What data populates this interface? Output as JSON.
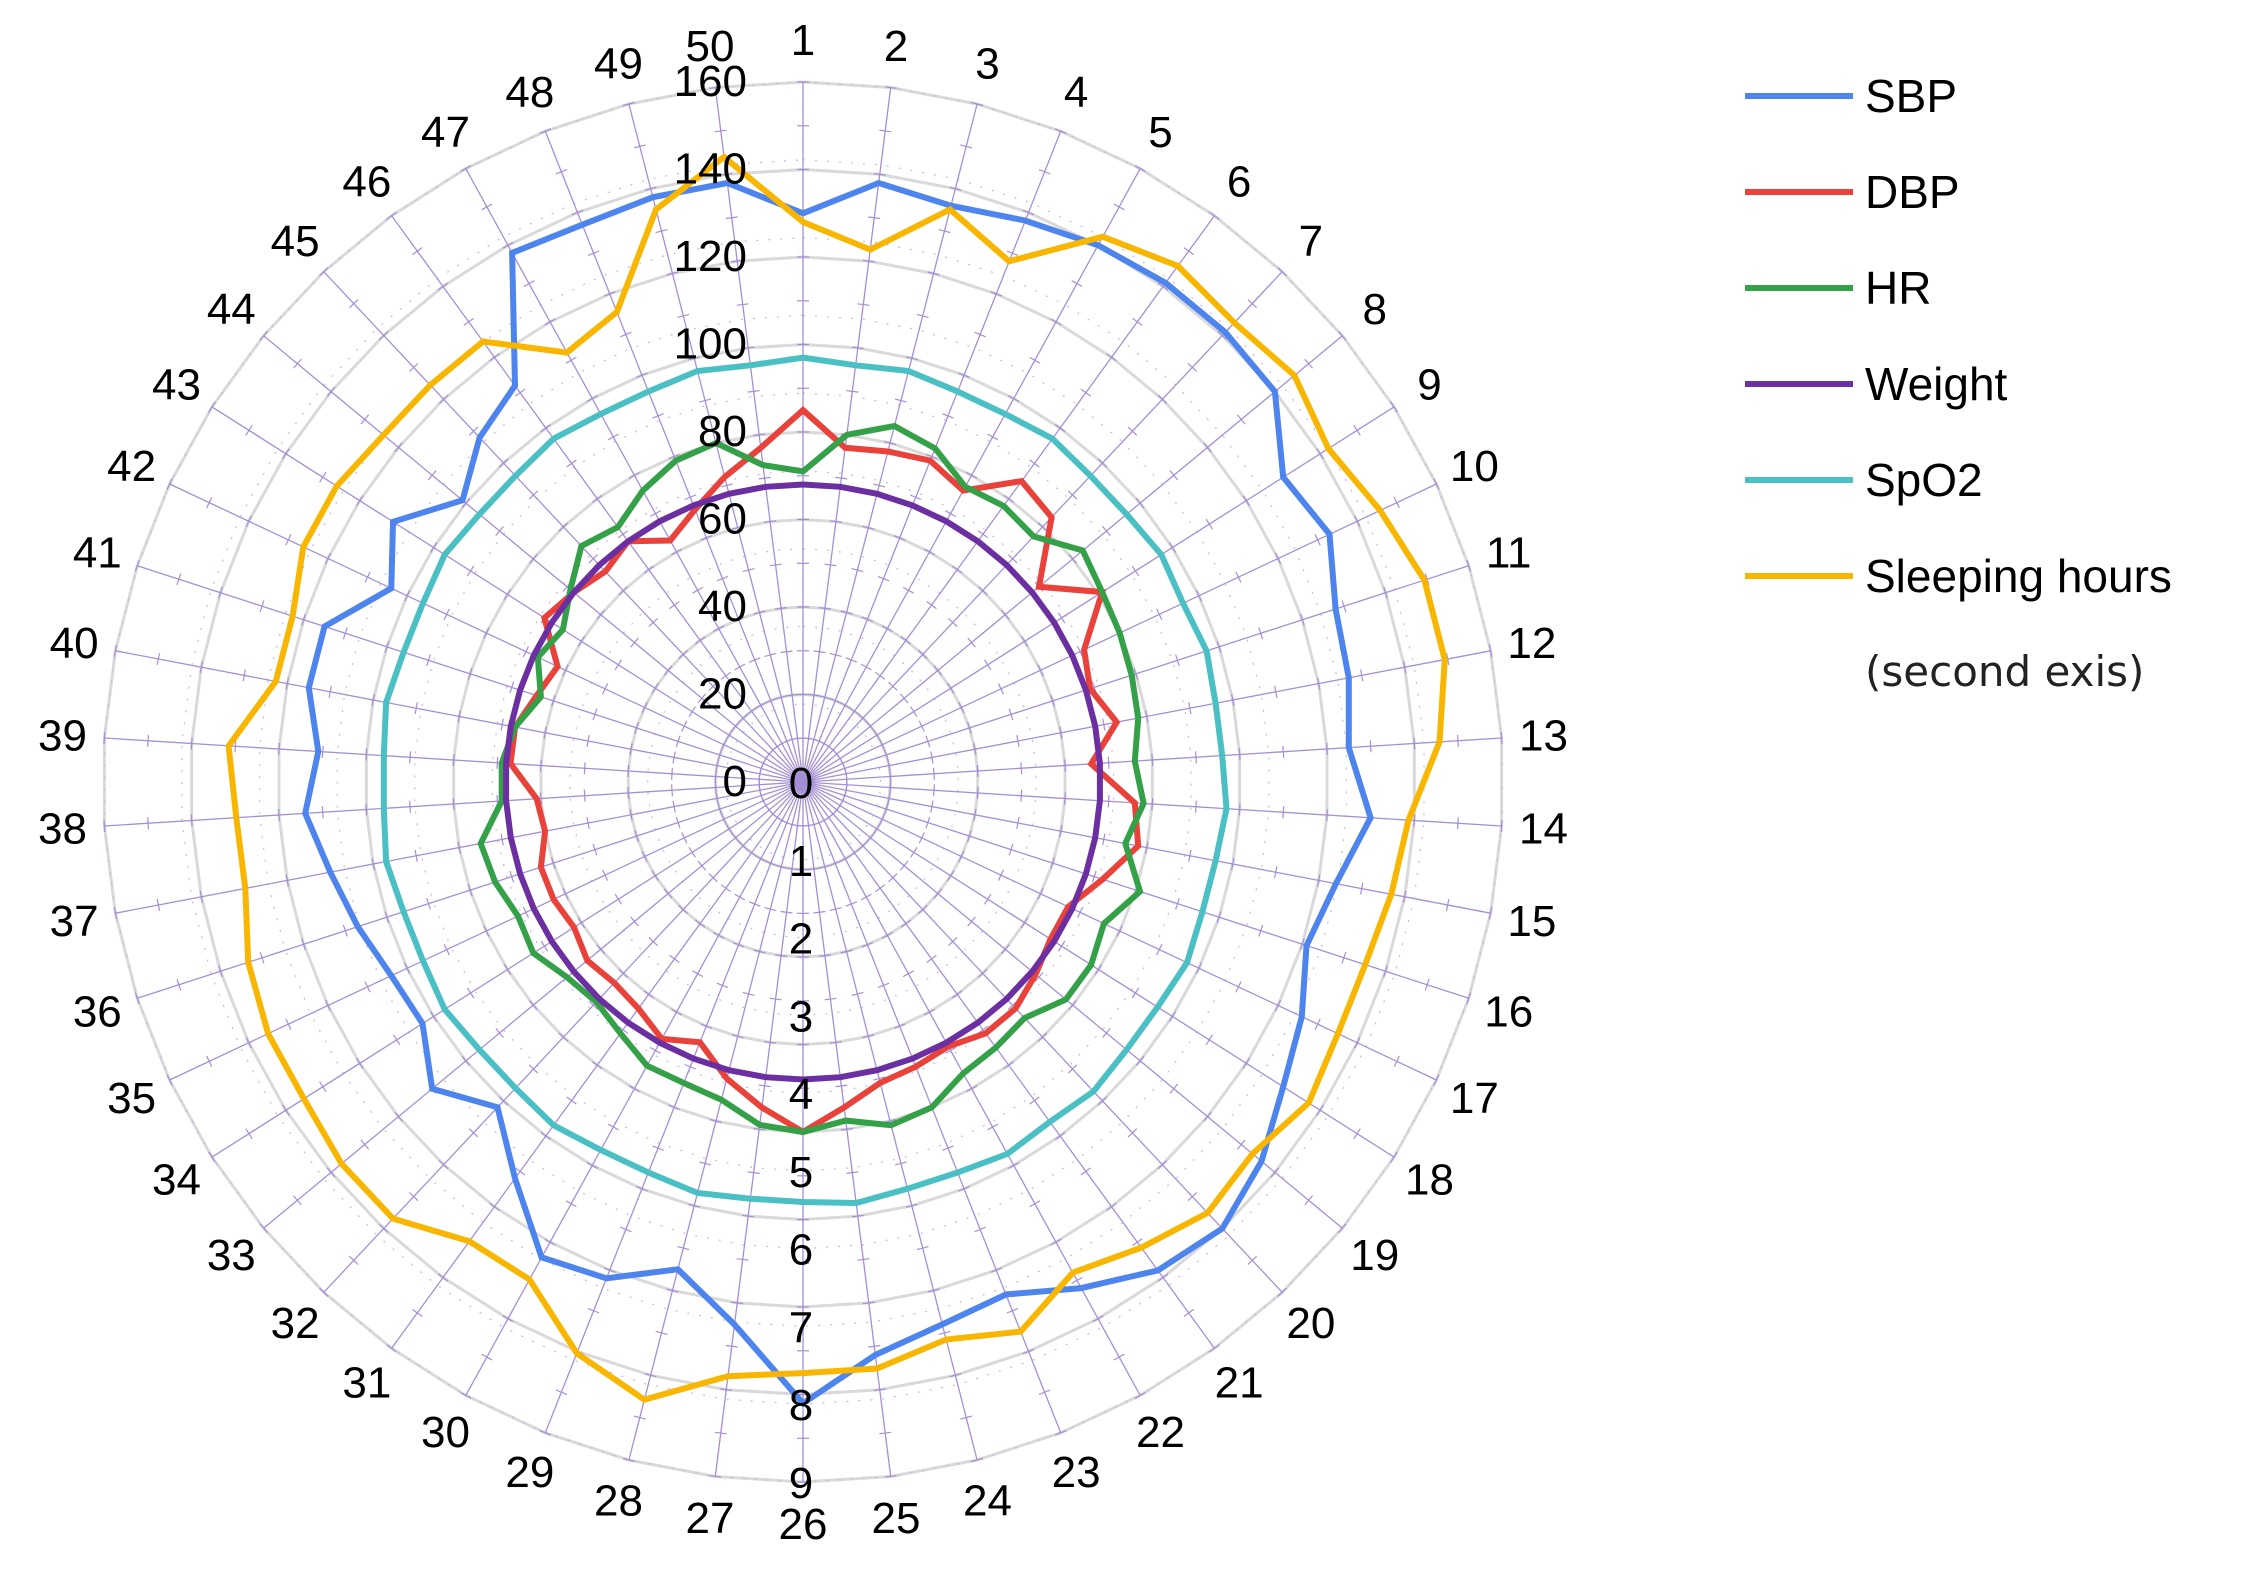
{
  "chart_data": {
    "type": "radar",
    "categories": [
      "1",
      "2",
      "3",
      "4",
      "5",
      "6",
      "7",
      "8",
      "9",
      "10",
      "11",
      "12",
      "13",
      "14",
      "15",
      "16",
      "17",
      "18",
      "19",
      "20",
      "21",
      "22",
      "23",
      "24",
      "25",
      "26",
      "27",
      "28",
      "29",
      "30",
      "31",
      "32",
      "33",
      "34",
      "35",
      "36",
      "37",
      "38",
      "39",
      "40",
      "41",
      "42",
      "43",
      "44",
      "45",
      "46",
      "47",
      "48",
      "49",
      "50"
    ],
    "primary_axis": {
      "range": [
        0,
        160
      ],
      "ticks": [
        0,
        20,
        40,
        60,
        80,
        100,
        120,
        140,
        160
      ]
    },
    "secondary_axis": {
      "range": [
        0,
        9
      ],
      "ticks": [
        0,
        1,
        2,
        3,
        4,
        5,
        6,
        7,
        8,
        9
      ]
    },
    "series": [
      {
        "name": "SBP",
        "color": "#4e84ee",
        "axis": "primary",
        "values": [
          130,
          138,
          136,
          138,
          140,
          141,
          141,
          140,
          130,
          133,
          128,
          127,
          125,
          130,
          124,
          121,
          126,
          130,
          136,
          140,
          138,
          132,
          126,
          128,
          132,
          142,
          125,
          115,
          122,
          124,
          112,
          102,
          110,
          103,
          104,
          107,
          110,
          114,
          111,
          115,
          115,
          104,
          111,
          101,
          108,
          112,
          138,
          137,
          138,
          138
        ]
      },
      {
        "name": "DBP",
        "color": "#e8423a",
        "axis": "primary",
        "values": [
          85,
          77,
          78,
          79,
          76,
          85,
          83,
          70,
          81,
          71,
          69,
          73,
          66,
          76,
          78,
          72,
          67,
          67,
          69,
          71,
          71,
          69,
          70,
          71,
          75,
          80,
          75,
          70,
          64,
          67,
          64,
          63,
          64,
          62,
          63,
          63,
          60,
          61,
          67,
          67,
          64,
          62,
          70,
          68,
          66,
          68,
          63,
          67,
          72,
          77
        ]
      },
      {
        "name": "HR",
        "color": "#34a048",
        "axis": "primary",
        "values": [
          71,
          80,
          84,
          82,
          77,
          78,
          77,
          83,
          81,
          80,
          79,
          78,
          76,
          78,
          75,
          81,
          76,
          78,
          78,
          74,
          75,
          76,
          80,
          81,
          78,
          80,
          79,
          75,
          74,
          74,
          71,
          69,
          70,
          73,
          72,
          74,
          75,
          69,
          69,
          67,
          63,
          67,
          65,
          69,
          74,
          72,
          76,
          79,
          80,
          73
        ]
      },
      {
        "name": "Weight",
        "color": "#6b2fa2",
        "axis": "primary",
        "values": [
          68,
          68,
          68,
          68,
          68,
          68,
          68,
          68,
          68,
          68,
          68,
          68,
          68,
          68,
          68,
          68,
          68,
          68,
          68,
          68,
          68,
          68,
          68,
          68,
          68,
          68,
          68,
          68,
          68,
          68,
          68,
          68,
          68,
          68,
          68,
          68,
          68,
          68,
          68,
          68,
          68,
          68,
          68,
          68,
          68,
          68,
          68,
          68,
          68,
          68
        ]
      },
      {
        "name": "SpO2",
        "color": "#4abfc4",
        "axis": "primary",
        "values": [
          97,
          96,
          97,
          96,
          96,
          97,
          96,
          96,
          97,
          96,
          97,
          96,
          96,
          97,
          96,
          96,
          97,
          96,
          96,
          97,
          96,
          97,
          96,
          96,
          97,
          96,
          96,
          97,
          96,
          96,
          97,
          96,
          96,
          97,
          96,
          96,
          97,
          96,
          96,
          97,
          96,
          96,
          97,
          96,
          96,
          97,
          96,
          96,
          97,
          96
        ]
      },
      {
        "name": "Sleeping hours",
        "color": "#f8b600",
        "axis": "secondary",
        "values": [
          7.2,
          6.9,
          7.6,
          7.2,
          8.0,
          8.2,
          8.1,
          8.2,
          8.0,
          8.2,
          8.4,
          8.4,
          8.2,
          7.8,
          7.7,
          7.6,
          7.6,
          7.7,
          7.5,
          7.6,
          7.4,
          7.2,
          7.6,
          7.4,
          7.6,
          7.6,
          7.7,
          8.2,
          7.9,
          7.3,
          7.3,
          7.7,
          7.7,
          7.6,
          7.6,
          7.5,
          7.3,
          7.3,
          7.4,
          6.9,
          6.9,
          7.1,
          7.1,
          7.0,
          7.0,
          7.0,
          6.3,
          6.5,
          7.6,
          8.1
        ]
      }
    ],
    "legend_note": "(second exis)",
    "legend_position": "top-right",
    "grid": true
  }
}
